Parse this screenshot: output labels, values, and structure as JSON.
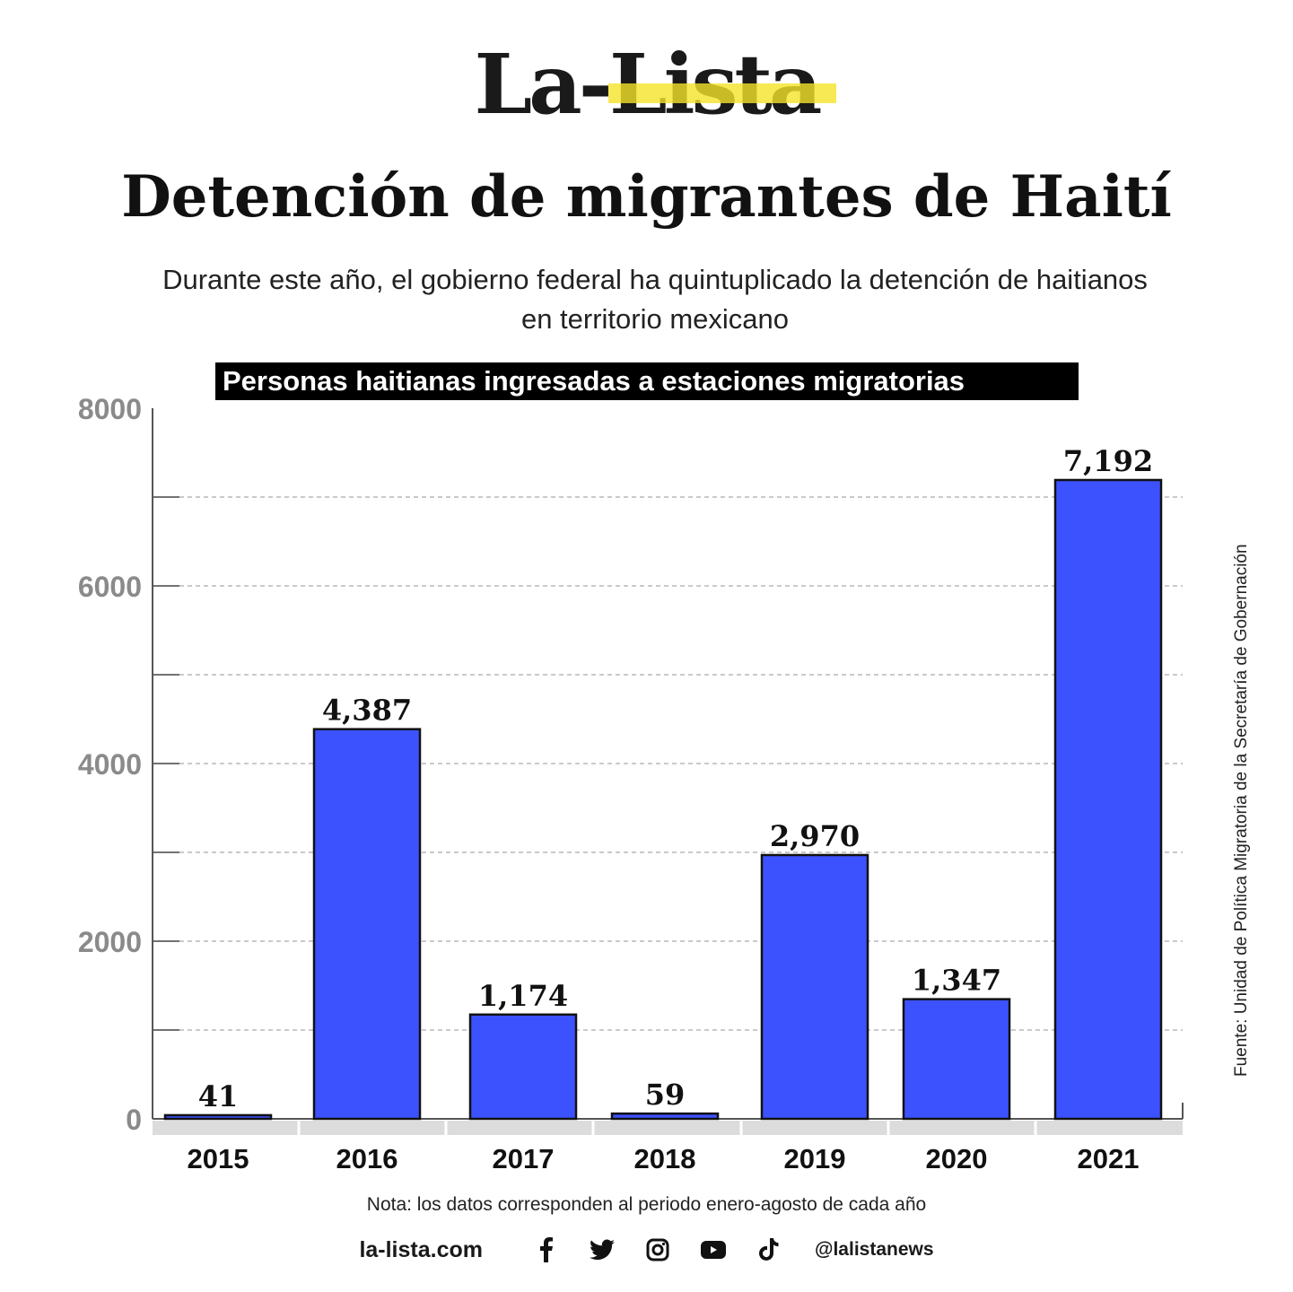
{
  "logo": {
    "text": "La-Lista",
    "accent_color": "#f5e428"
  },
  "title": "Detención de migrantes de Haití",
  "subtitle": "Durante este año, el gobierno federal ha quintuplicado la detención de haitianos en territorio mexicano",
  "source": "Fuente: Unidad de Política Migratoria de la Secretaría de Gobernación",
  "note": "Nota: los datos corresponden al periodo enero-agosto de cada año",
  "footer": {
    "site": "la-lista.com",
    "social_icons": [
      "facebook-icon",
      "twitter-icon",
      "instagram-icon",
      "youtube-icon",
      "tiktok-icon"
    ],
    "handle": "@lalistanews"
  },
  "chart_data": {
    "type": "bar",
    "title": "Personas haitianas ingresadas a estaciones migratorias",
    "categories": [
      "2015",
      "2016",
      "2017",
      "2018",
      "2019",
      "2020",
      "2021"
    ],
    "values": [
      41,
      4387,
      1174,
      59,
      2970,
      1347,
      7192
    ],
    "data_labels": [
      "41",
      "4,387",
      "1,174",
      "59",
      "2,970",
      "1,347",
      "7,192"
    ],
    "xlabel": "",
    "ylabel": "",
    "ylim": [
      0,
      8000
    ],
    "yticks": [
      "0",
      "2000",
      "4000",
      "6000",
      "8000"
    ],
    "grid": "dashed horizontal every 1000",
    "bar_color": "#3d52ff"
  }
}
